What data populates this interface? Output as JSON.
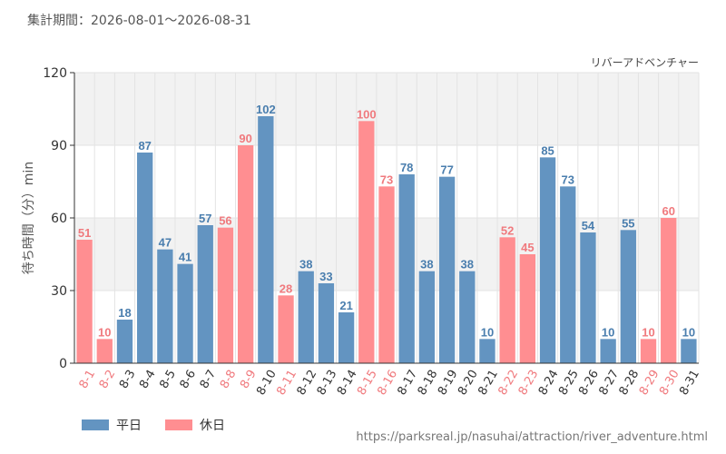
{
  "header": {
    "period_label": "集計期間：2026-08-01～2026-08-31",
    "attraction": "リバーアドベンチャー"
  },
  "legend": {
    "weekday": "平日",
    "holiday": "休日"
  },
  "footer": {
    "source_url": "https://parksreal.jp/nasuhai/attraction/river_adventure.html"
  },
  "colors": {
    "weekday": "#6394c1",
    "holiday": "#ff8e91",
    "weekday_text": "#4a7eae",
    "holiday_text": "#f07a7e",
    "band": "#f2f2f2",
    "grid": "#e3e3e3"
  },
  "chart_data": {
    "type": "bar",
    "ylabel": "待ち時間（分）min",
    "ylim": [
      0,
      120
    ],
    "yticks": [
      0,
      30,
      60,
      90,
      120
    ],
    "grid": true,
    "legend_position": "bottom-left",
    "categories": [
      "8-1",
      "8-2",
      "8-3",
      "8-4",
      "8-5",
      "8-6",
      "8-7",
      "8-8",
      "8-9",
      "8-10",
      "8-11",
      "8-12",
      "8-13",
      "8-14",
      "8-15",
      "8-16",
      "8-17",
      "8-18",
      "8-19",
      "8-20",
      "8-21",
      "8-22",
      "8-23",
      "8-24",
      "8-25",
      "8-26",
      "8-27",
      "8-28",
      "8-29",
      "8-30",
      "8-31"
    ],
    "values": [
      51,
      10,
      18,
      87,
      47,
      41,
      57,
      56,
      90,
      102,
      28,
      38,
      33,
      21,
      100,
      73,
      78,
      38,
      77,
      38,
      10,
      52,
      45,
      85,
      73,
      54,
      10,
      55,
      10,
      60,
      10
    ],
    "day_type": [
      "holiday",
      "holiday",
      "weekday",
      "weekday",
      "weekday",
      "weekday",
      "weekday",
      "holiday",
      "holiday",
      "weekday",
      "holiday",
      "weekday",
      "weekday",
      "weekday",
      "holiday",
      "holiday",
      "weekday",
      "weekday",
      "weekday",
      "weekday",
      "weekday",
      "holiday",
      "holiday",
      "weekday",
      "weekday",
      "weekday",
      "weekday",
      "weekday",
      "holiday",
      "holiday",
      "weekday"
    ],
    "series": [
      {
        "name": "平日",
        "key": "weekday"
      },
      {
        "name": "休日",
        "key": "holiday"
      }
    ]
  }
}
